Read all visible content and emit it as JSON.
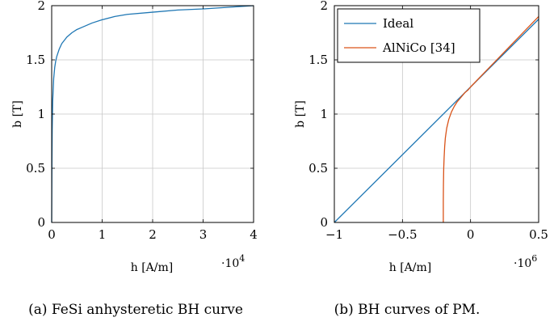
{
  "chart_data": [
    {
      "type": "line",
      "caption": "(a) FeSi anhysteretic BH curve",
      "xlabel": "h [A/m]",
      "ylabel": "b [T]",
      "x_multiplier": "·10",
      "x_multiplier_exp": "4",
      "xlim": [
        0,
        4
      ],
      "ylim": [
        0,
        2
      ],
      "xticks": [
        0,
        1,
        2,
        3,
        4
      ],
      "yticks": [
        0,
        0.5,
        1,
        1.5,
        2
      ],
      "xtick_labels": [
        "0",
        "1",
        "2",
        "3",
        "4"
      ],
      "ytick_labels": [
        "0",
        "0.5",
        "1",
        "1.5",
        "2"
      ],
      "grid": true,
      "series": [
        {
          "color": "#1f77b4",
          "x": [
            0,
            0.005,
            0.01,
            0.02,
            0.04,
            0.06,
            0.08,
            0.1,
            0.15,
            0.2,
            0.3,
            0.4,
            0.5,
            0.6,
            0.8,
            1.0,
            1.25,
            1.5,
            2.0,
            2.5,
            3.0,
            3.5,
            4.0
          ],
          "y": [
            0,
            0.55,
            0.85,
            1.12,
            1.33,
            1.43,
            1.49,
            1.53,
            1.6,
            1.65,
            1.71,
            1.75,
            1.78,
            1.8,
            1.84,
            1.87,
            1.9,
            1.92,
            1.94,
            1.96,
            1.97,
            1.985,
            2.0
          ]
        }
      ]
    },
    {
      "type": "line",
      "caption": "(b) BH curves of PM.",
      "xlabel": "h [A/m]",
      "ylabel": "b [T]",
      "x_multiplier": "·10",
      "x_multiplier_exp": "6",
      "xlim": [
        -1,
        0.5
      ],
      "ylim": [
        0,
        2
      ],
      "xticks": [
        -1,
        -0.5,
        0,
        0.5
      ],
      "yticks": [
        0,
        0.5,
        1,
        1.5,
        2
      ],
      "xtick_labels": [
        "−1",
        "−0.5",
        "0",
        "0.5"
      ],
      "ytick_labels": [
        "0",
        "0.5",
        "1",
        "1.5",
        "2"
      ],
      "grid": true,
      "legend_position": "top-left",
      "series": [
        {
          "name": "Ideal",
          "color": "#1f77b4",
          "x": [
            -1,
            0.5
          ],
          "y": [
            0,
            1.875
          ]
        },
        {
          "name": "AlNiCo [34]",
          "color": "#d95319",
          "x": [
            -0.2,
            -0.2,
            -0.199,
            -0.197,
            -0.194,
            -0.19,
            -0.185,
            -0.175,
            -0.16,
            -0.14,
            -0.12,
            -0.1,
            -0.08,
            -0.06,
            -0.04,
            -0.02,
            0,
            0.1,
            0.2,
            0.3,
            0.4,
            0.5
          ],
          "y": [
            0,
            0.2,
            0.35,
            0.5,
            0.6,
            0.7,
            0.78,
            0.87,
            0.95,
            1.02,
            1.07,
            1.11,
            1.14,
            1.17,
            1.2,
            1.22,
            1.25,
            1.38,
            1.51,
            1.64,
            1.77,
            1.9
          ]
        }
      ]
    }
  ]
}
